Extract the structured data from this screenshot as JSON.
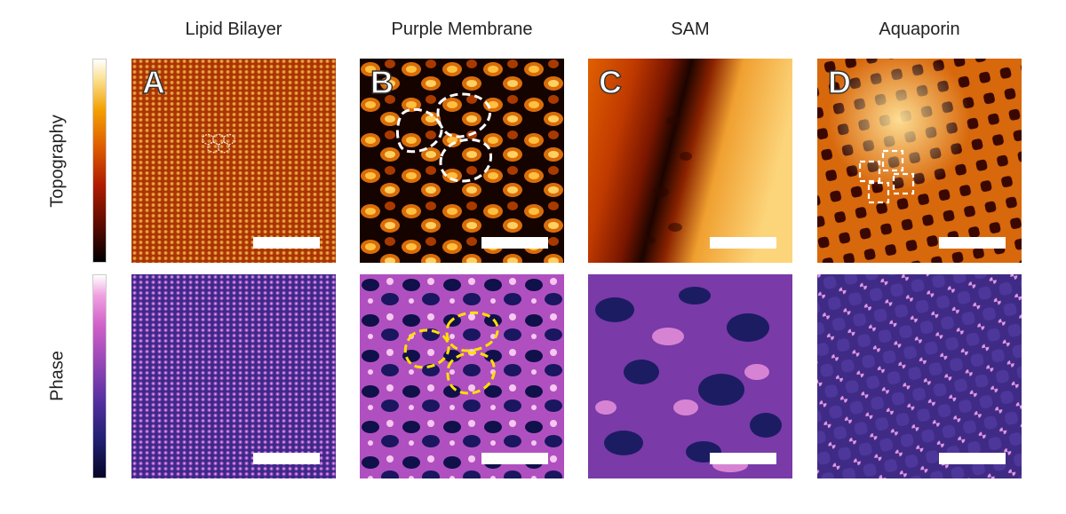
{
  "columns": [
    {
      "title": "Lipid Bilayer",
      "letter": "A"
    },
    {
      "title": "Purple Membrane",
      "letter": "B"
    },
    {
      "title": "SAM",
      "letter": "C"
    },
    {
      "title": "Aquaporin",
      "letter": "D"
    }
  ],
  "rows": [
    {
      "label": "Topography"
    },
    {
      "label": "Phase"
    }
  ],
  "colormaps": {
    "topography": [
      "#000000",
      "#5a0a00",
      "#b01c00",
      "#e06000",
      "#f3a000",
      "#fbe090",
      "#ffffff"
    ],
    "phase": [
      "#060626",
      "#1f1f70",
      "#5530a0",
      "#9a48b8",
      "#d060c8",
      "#f0a0e0",
      "#ffffff"
    ]
  }
}
